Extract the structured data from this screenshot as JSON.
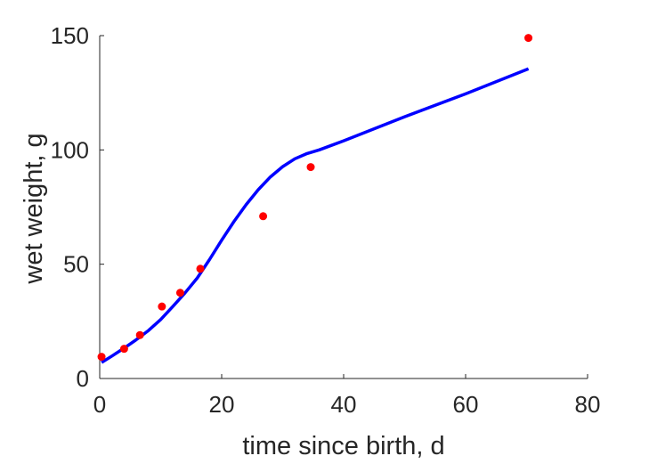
{
  "chart_data": {
    "type": "scatter",
    "xlabel": "time since birth, d",
    "ylabel": "wet weight, g",
    "xlim": [
      0,
      80
    ],
    "ylim": [
      0,
      150
    ],
    "xticks": [
      0,
      20,
      40,
      60,
      80
    ],
    "yticks": [
      0,
      50,
      100,
      150
    ],
    "grid": false,
    "box": false,
    "series": [
      {
        "kind": "points",
        "color": "#ff0000",
        "x": [
          0.3,
          4.0,
          6.6,
          10.2,
          13.2,
          16.5,
          26.8,
          34.6,
          70.3
        ],
        "y": [
          9.5,
          13.0,
          19.0,
          31.5,
          37.5,
          48.0,
          71.0,
          92.5,
          149.0
        ]
      },
      {
        "kind": "line",
        "color": "#0000ff",
        "x": [
          0.3,
          2,
          4,
          6,
          8,
          10,
          12,
          14,
          16,
          18,
          20,
          22,
          24,
          26,
          28,
          30,
          32,
          34,
          36,
          40,
          50,
          60,
          70.3
        ],
        "y": [
          7.0,
          9.8,
          13.3,
          17.0,
          21.0,
          25.8,
          31.5,
          37.5,
          44.0,
          52.0,
          60.5,
          68.6,
          76.0,
          82.6,
          88.2,
          92.7,
          96.1,
          98.4,
          100.0,
          104.0,
          114.5,
          124.5,
          135.5
        ]
      }
    ]
  }
}
